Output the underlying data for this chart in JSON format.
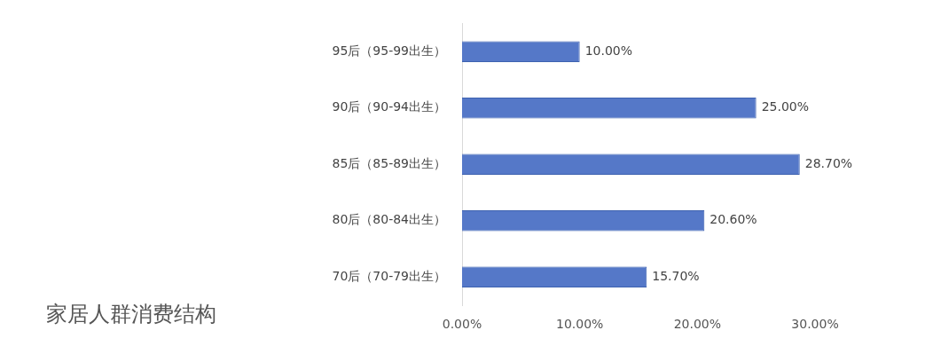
{
  "chart_data": {
    "type": "bar",
    "orientation": "horizontal",
    "title": "家居人群消费结构",
    "categories": [
      "95后（95-99出生）",
      "90后（90-94出生）",
      "85后（85-89出生）",
      "80后（80-84出生）",
      "70后（70-79出生）"
    ],
    "values": [
      10,
      25,
      28.7,
      20.6,
      15.7
    ],
    "value_labels": [
      "10.00%",
      "25.00%",
      "28.70%",
      "20.60%",
      "15.70%"
    ],
    "color": "#5578c8",
    "xlim": [
      0,
      30
    ],
    "xticks": [
      {
        "value": 0,
        "label": "0.00%"
      },
      {
        "value": 10,
        "label": "10.00%"
      },
      {
        "value": 20,
        "label": "20.00%"
      },
      {
        "value": 30,
        "label": "30.00%"
      }
    ],
    "grid": false,
    "legend": false
  }
}
